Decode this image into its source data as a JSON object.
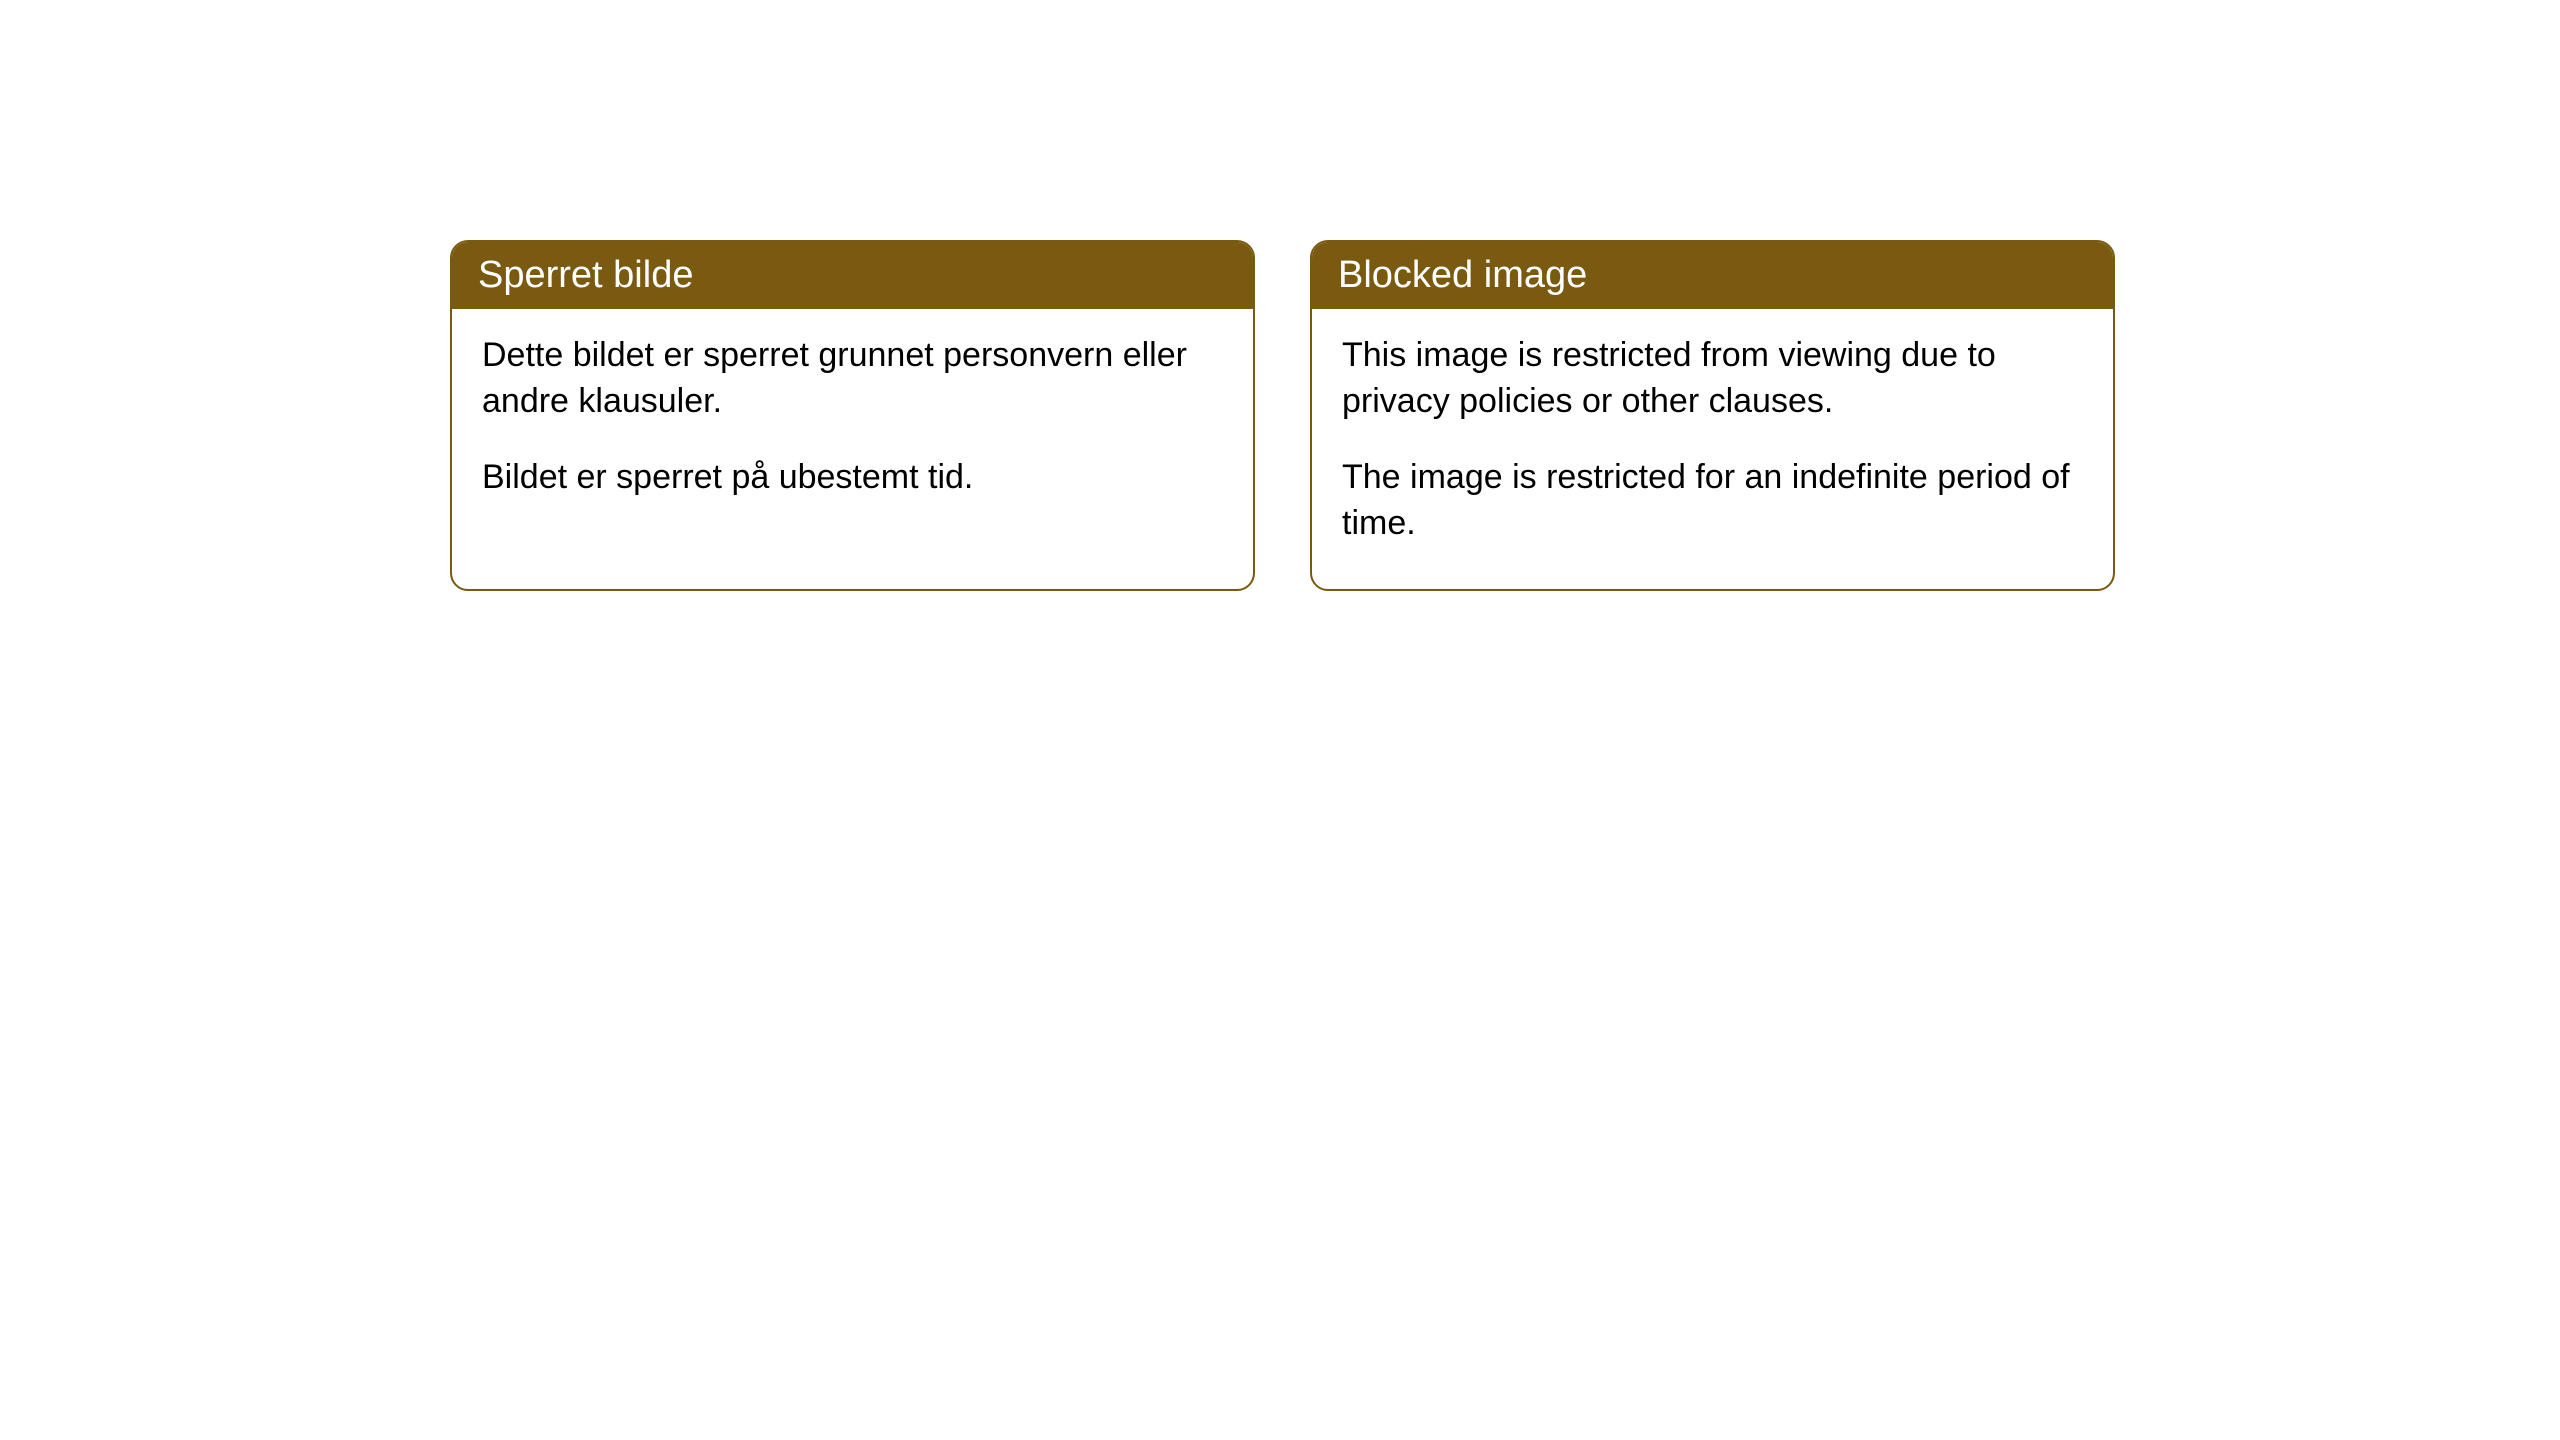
{
  "cards": [
    {
      "title": "Sperret bilde",
      "paragraph1": "Dette bildet er sperret grunnet personvern eller andre klausuler.",
      "paragraph2": "Bildet er sperret på ubestemt tid."
    },
    {
      "title": "Blocked image",
      "paragraph1": "This image is restricted from viewing due to privacy policies or other clauses.",
      "paragraph2": "The image is restricted for an indefinite period of time."
    }
  ],
  "style": {
    "header_background": "#7a5a10",
    "header_text_color": "#ffffff",
    "border_color": "#7a5a10",
    "body_background": "#ffffff",
    "body_text_color": "#000000",
    "page_background": "#ffffff",
    "border_radius": 18,
    "title_fontsize": 38,
    "body_fontsize": 34
  }
}
